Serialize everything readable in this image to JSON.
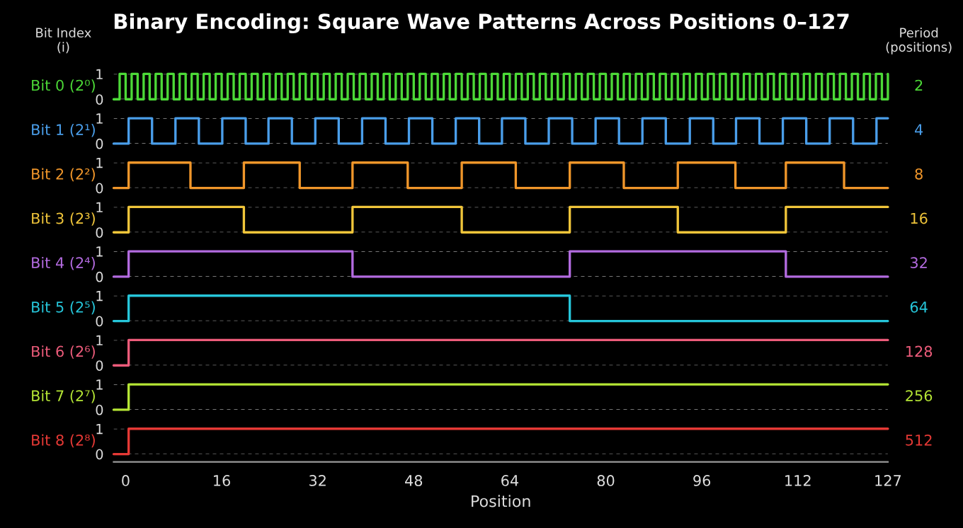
{
  "chart_data": [
    {
      "type": "step",
      "title": "Binary Encoding: Square Wave Patterns Across Positions 0–127",
      "ylabel": "Bit 0 (2⁰)",
      "y2label": "2",
      "annotations": [
        "Bit Index\n(i)",
        "Period\n(positions)"
      ],
      "color": "#4cd937",
      "xlim": [
        -2,
        127
      ],
      "ylim": [
        0,
        1
      ],
      "yticks": [
        0,
        1
      ],
      "grid": "y",
      "tick_labels": "y",
      "x": [
        -2,
        -1,
        0,
        1,
        2,
        3,
        4,
        5,
        6,
        7,
        8,
        9,
        10,
        11,
        12,
        13,
        14,
        15,
        16,
        17,
        18,
        19,
        20,
        21,
        22,
        23,
        24,
        25,
        26,
        27,
        28,
        29,
        30,
        31,
        32,
        33,
        34,
        35,
        36,
        37,
        38,
        39,
        40,
        41,
        42,
        43,
        44,
        45,
        46,
        47,
        48,
        49,
        50,
        51,
        52,
        53,
        54,
        55,
        56,
        57,
        58,
        59,
        60,
        61,
        62,
        63,
        64,
        65,
        66,
        67,
        68,
        69,
        70,
        71,
        72,
        73,
        74,
        75,
        76,
        77,
        78,
        79,
        80,
        81,
        82,
        83,
        84,
        85,
        86,
        87,
        88,
        89,
        90,
        91,
        92,
        93,
        94,
        95,
        96,
        97,
        98,
        99,
        100,
        101,
        102,
        103,
        104,
        105,
        106,
        107,
        108,
        109,
        110,
        111,
        112,
        113,
        114,
        115,
        116,
        117,
        118,
        119,
        120,
        121,
        122,
        123,
        124,
        125,
        126,
        127
      ],
      "values": [
        0,
        1,
        0,
        1,
        0,
        1,
        0,
        1,
        0,
        1,
        0,
        1,
        0,
        1,
        0,
        1,
        0,
        1,
        0,
        1,
        0,
        1,
        0,
        1,
        0,
        1,
        0,
        1,
        0,
        1,
        0,
        1,
        0,
        1,
        0,
        1,
        0,
        1,
        0,
        1,
        0,
        1,
        0,
        1,
        0,
        1,
        0,
        1,
        0,
        1,
        0,
        1,
        0,
        1,
        0,
        1,
        0,
        1,
        0,
        1,
        0,
        1,
        0,
        1,
        0,
        1,
        0,
        1,
        0,
        1,
        0,
        1,
        0,
        1,
        0,
        1,
        0,
        1,
        0,
        1,
        0,
        1,
        0,
        1,
        0,
        1,
        0,
        1,
        0,
        1,
        0,
        1,
        0,
        1,
        0,
        1,
        0,
        1,
        0,
        1,
        0,
        1,
        0,
        1,
        0,
        1,
        0,
        1,
        0,
        1,
        0,
        1,
        0,
        1,
        0,
        1,
        0,
        1,
        0,
        1,
        0,
        1,
        0,
        1,
        0,
        1,
        0,
        1,
        0,
        1
      ]
    },
    {
      "type": "step",
      "ylabel": "Bit 1 (2¹)",
      "y2label": "4",
      "color": "#4a9eea",
      "xlim": [
        -2,
        127
      ],
      "ylim": [
        0,
        1
      ],
      "yticks": [
        0,
        1
      ],
      "grid": "y",
      "tick_labels": "y",
      "x": [
        -2,
        0.5,
        4.4,
        8.3,
        12.2,
        16.1,
        20,
        23.8,
        27.7,
        31.6,
        35.5,
        39.4,
        43.3,
        47.2,
        51.1,
        55,
        58.9,
        62.7,
        66.6,
        70.5,
        74.4,
        78.3,
        82.2,
        86.1,
        90,
        94,
        97.9,
        101.7,
        105.6,
        109.5,
        113.4,
        117.3,
        121.2,
        125.1,
        127
      ],
      "values": [
        0,
        1,
        0,
        1,
        0,
        1,
        0,
        1,
        0,
        1,
        0,
        1,
        0,
        1,
        0,
        1,
        0,
        1,
        0,
        1,
        0,
        1,
        0,
        1,
        0,
        1,
        0,
        1,
        0,
        1,
        0,
        1,
        0,
        1,
        1
      ]
    },
    {
      "type": "step",
      "ylabel": "Bit 2 (2²)",
      "y2label": "8",
      "color": "#f0962a",
      "xlim": [
        -2,
        127
      ],
      "ylim": [
        0,
        1
      ],
      "yticks": [
        0,
        1
      ],
      "grid": "y",
      "tick_labels": "y",
      "x": [
        -2,
        0.5,
        10.8,
        19.7,
        29,
        37.8,
        47,
        56,
        65,
        74,
        83,
        92,
        101.6,
        110,
        119.7,
        127
      ],
      "values": [
        0,
        1,
        0,
        1,
        0,
        1,
        0,
        1,
        0,
        1,
        0,
        1,
        0,
        1,
        0,
        0
      ]
    },
    {
      "type": "step",
      "ylabel": "Bit 3 (2³)",
      "y2label": "16",
      "color": "#f0c53a",
      "xlim": [
        -2,
        127
      ],
      "ylim": [
        0,
        1
      ],
      "yticks": [
        0,
        1
      ],
      "grid": "y",
      "tick_labels": "y",
      "x": [
        -2,
        0.5,
        19.7,
        37.8,
        56,
        74,
        92,
        110,
        127
      ],
      "values": [
        0,
        1,
        0,
        1,
        0,
        1,
        0,
        1,
        1
      ]
    },
    {
      "type": "step",
      "ylabel": "Bit 4 (2⁴)",
      "y2label": "32",
      "color": "#b36be0",
      "xlim": [
        -2,
        127
      ],
      "ylim": [
        0,
        1
      ],
      "yticks": [
        0,
        1
      ],
      "grid": "y",
      "tick_labels": "y",
      "x": [
        -2,
        0.5,
        37.8,
        74,
        110,
        127
      ],
      "values": [
        0,
        1,
        0,
        1,
        0,
        0
      ]
    },
    {
      "type": "step",
      "ylabel": "Bit 5 (2⁵)",
      "y2label": "64",
      "color": "#26c6da",
      "xlim": [
        -2,
        127
      ],
      "ylim": [
        0,
        1
      ],
      "yticks": [
        0,
        1
      ],
      "grid": "y",
      "tick_labels": "y",
      "x": [
        -2,
        0.5,
        74,
        127
      ],
      "values": [
        0,
        1,
        0,
        0
      ]
    },
    {
      "type": "step",
      "ylabel": "Bit 6 (2⁶)",
      "y2label": "128",
      "color": "#ec5b7a",
      "xlim": [
        -2,
        127
      ],
      "ylim": [
        0,
        1
      ],
      "yticks": [
        0,
        1
      ],
      "grid": "y",
      "tick_labels": "y",
      "x": [
        -2,
        0.5,
        32,
        64,
        96,
        127
      ],
      "values": [
        0,
        1,
        1,
        1,
        1,
        1
      ]
    },
    {
      "type": "step",
      "ylabel": "Bit 7 (2⁷)",
      "y2label": "256",
      "color": "#b5e635",
      "xlim": [
        -2,
        127
      ],
      "ylim": [
        0,
        1
      ],
      "yticks": [
        0,
        1
      ],
      "grid": "y",
      "tick_labels": "y",
      "x": [
        -2,
        0.5,
        32,
        64,
        96,
        127
      ],
      "values": [
        0,
        1,
        1,
        1,
        1,
        1
      ]
    },
    {
      "type": "step",
      "ylabel": "Bit 8 (2⁸)",
      "y2label": "512",
      "xlabel": "Position",
      "color": "#e53935",
      "xlim": [
        -2,
        127
      ],
      "ylim": [
        0,
        1
      ],
      "yticks": [
        0,
        1
      ],
      "xticks": [
        0,
        16,
        32,
        48,
        64,
        80,
        96,
        112,
        127
      ],
      "grid": "y",
      "x": [
        -2,
        0.5,
        32,
        64,
        96,
        127
      ],
      "values": [
        0,
        1,
        1,
        1,
        1,
        1
      ]
    }
  ]
}
